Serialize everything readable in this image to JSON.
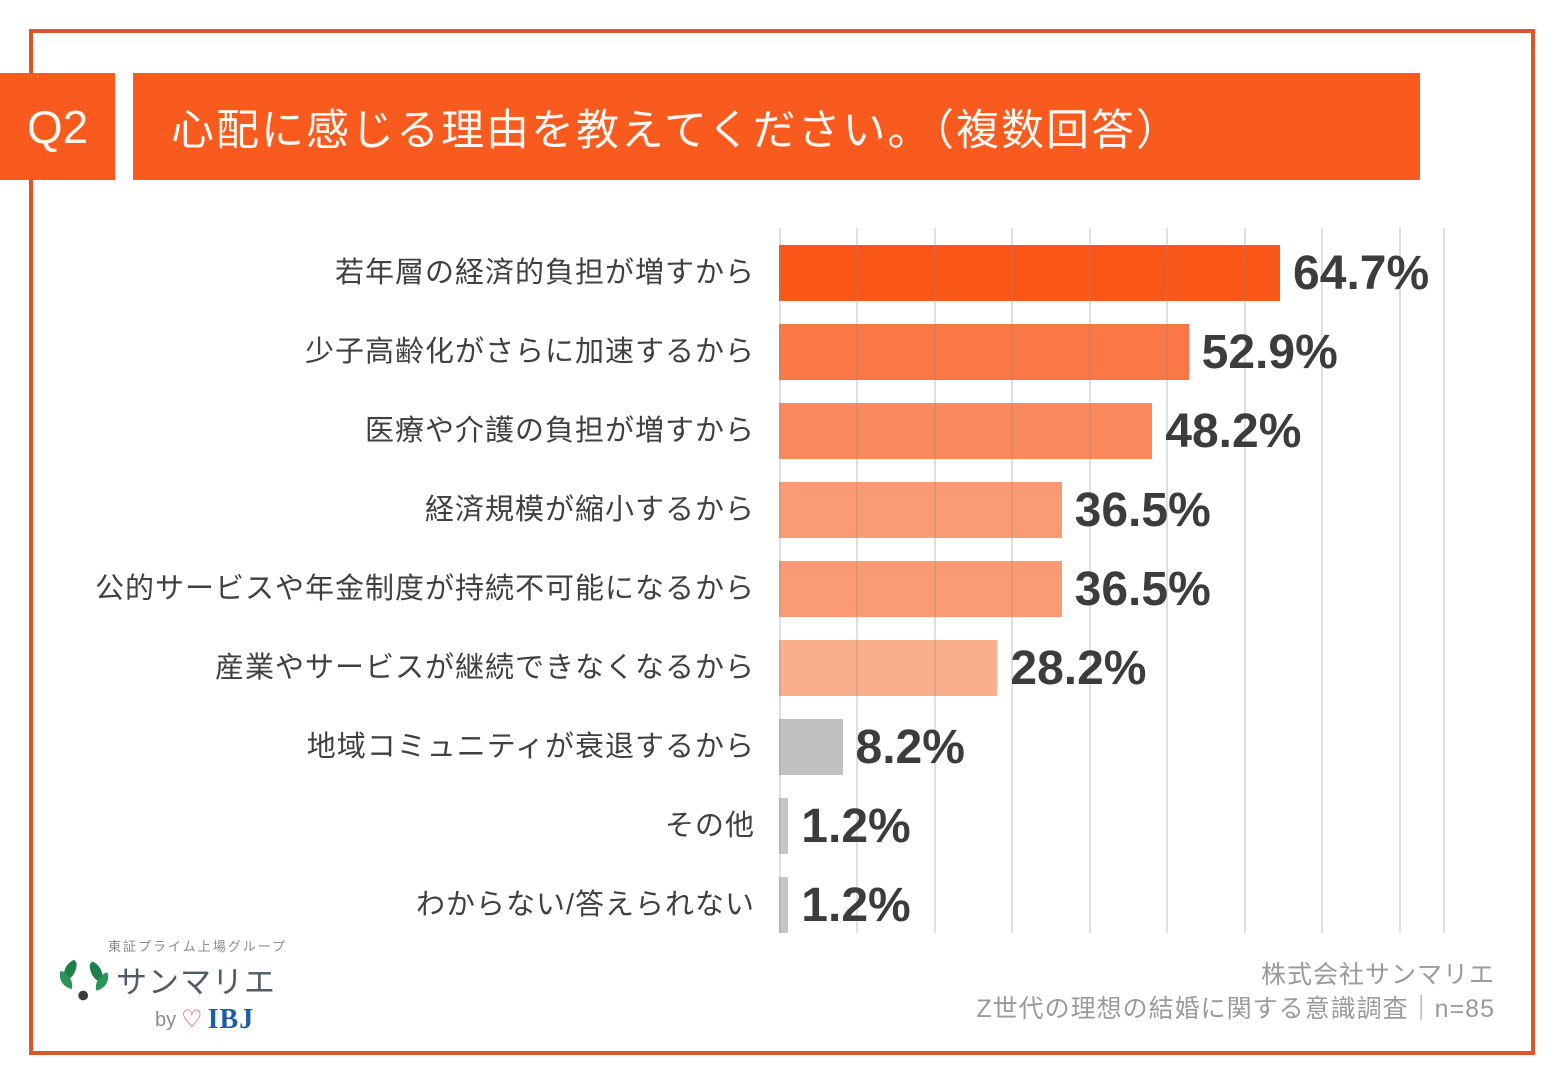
{
  "header": {
    "badge": "Q2",
    "title": "心配に感じる理由を教えてください。（複数回答）"
  },
  "chart_data": {
    "type": "bar",
    "orientation": "horizontal",
    "title": "心配に感じる理由を教えてください。（複数回答）",
    "categories": [
      "若年層の経済的負担が増すから",
      "少子高齢化がさらに加速するから",
      "医療や介護の負担が増すから",
      "経済規模が縮小するから",
      "公的サービスや年金制度が持続不可能になるから",
      "産業やサービスが継続できなくなるから",
      "地域コミュニティが衰退するから",
      "その他",
      "わからない/答えられない"
    ],
    "values": [
      64.7,
      52.9,
      48.2,
      36.5,
      36.5,
      28.2,
      8.2,
      1.2,
      1.2
    ],
    "value_labels": [
      "64.7%",
      "52.9%",
      "48.2%",
      "36.5%",
      "36.5%",
      "28.2%",
      "8.2%",
      "1.2%",
      "1.2%"
    ],
    "unit": "%",
    "xlim": [
      0,
      86
    ],
    "gridline_step": 10,
    "grid": true,
    "legend": false,
    "bar_colors": [
      "#f95617",
      "#f97845",
      "#fa8a5e",
      "#fa9b73",
      "#fa9b73",
      "#fbae8c",
      "#c1c1c1",
      "#c6c6c6",
      "#c6c6c6"
    ]
  },
  "footer": {
    "logo": {
      "tagline": "東証プライム上場グループ",
      "brand": "サンマリエ",
      "by_label": "by",
      "heart": "♡",
      "ibj": "IBJ"
    },
    "credit_line1": "株式会社サンマリエ",
    "credit_line2": "Z世代の理想の結婚に関する意識調査｜n=85"
  },
  "colors": {
    "primary_orange": "#f95a1e",
    "border_orange": "#d9572b",
    "bar_strong": "#f95617",
    "bar_gray": "#c1c1c1",
    "text_dark": "#3c3c3c",
    "text_gray": "#9a9a9a",
    "gridline": "#d9d9d9",
    "ibj_blue": "#1e5ca8",
    "leaf_green": "#1e7f49"
  }
}
